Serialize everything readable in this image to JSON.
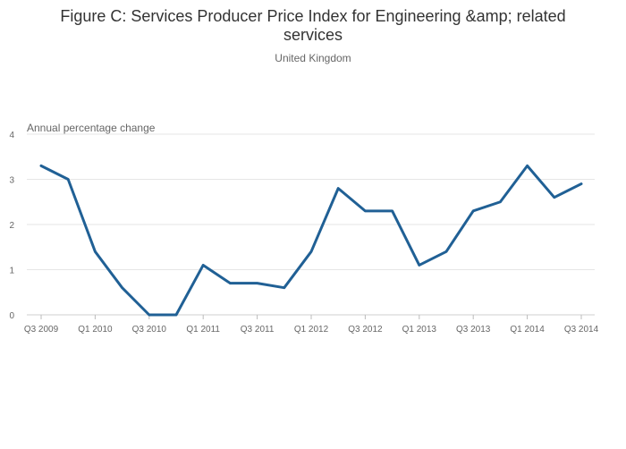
{
  "chart_data": {
    "type": "line",
    "title": "Figure C: Services Producer Price Index for Engineering &amp; related services",
    "title_lines": [
      "Figure C: Services Producer Price Index for Engineering &amp; related",
      "services"
    ],
    "subtitle": "United Kingdom",
    "ylabel": "Annual percentage change",
    "xlabel": "",
    "ylim": [
      0,
      4
    ],
    "yticks": [
      0,
      1,
      2,
      3,
      4
    ],
    "grid": true,
    "line_color": "#206095",
    "x_categories": [
      "Q3 2009",
      "Q4 2009",
      "Q1 2010",
      "Q2 2010",
      "Q3 2010",
      "Q4 2010",
      "Q1 2011",
      "Q2 2011",
      "Q3 2011",
      "Q4 2011",
      "Q1 2012",
      "Q2 2012",
      "Q3 2012",
      "Q4 2012",
      "Q1 2013",
      "Q2 2013",
      "Q3 2013",
      "Q4 2013",
      "Q1 2014",
      "Q2 2014",
      "Q3 2014"
    ],
    "x_tick_labels": [
      "Q3 2009",
      "Q1 2010",
      "Q3 2010",
      "Q1 2011",
      "Q3 2011",
      "Q1 2012",
      "Q3 2012",
      "Q1 2013",
      "Q3 2013",
      "Q1 2014",
      "Q3 2014"
    ],
    "values": [
      3.3,
      3.0,
      1.4,
      0.6,
      0.0,
      0.0,
      1.1,
      0.7,
      0.7,
      0.6,
      1.4,
      2.8,
      2.3,
      2.3,
      1.1,
      1.4,
      2.3,
      2.5,
      3.3,
      2.6,
      2.9
    ]
  }
}
